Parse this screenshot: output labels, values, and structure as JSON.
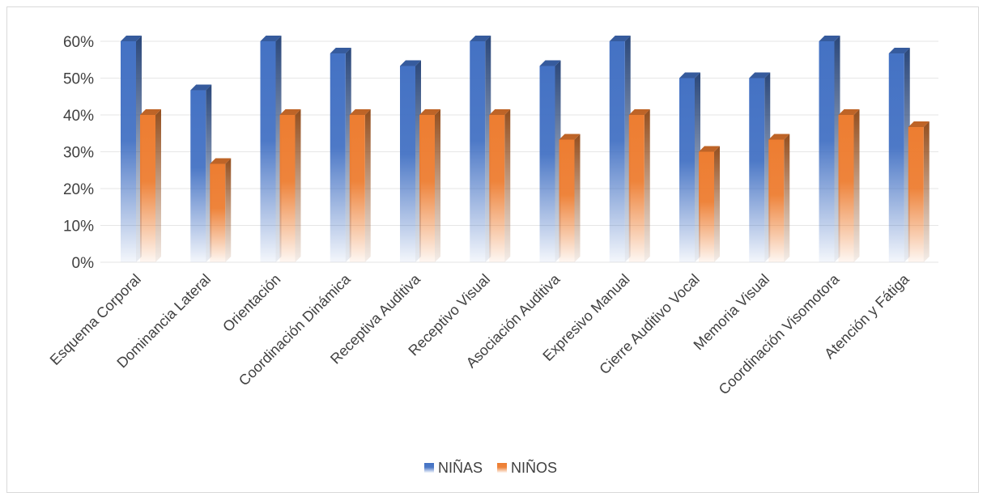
{
  "chart_data": {
    "type": "bar",
    "categories": [
      "Esquema Corporal",
      "Dominancia Lateral",
      "Orientación",
      "Coordinación Dinámica",
      "Receptiva Auditiva",
      "Receptivo Visual",
      "Asociación Auditiva",
      "Expresivo Manual",
      "Cierre Auditivo Vocal",
      "Memoria Visual",
      "Coordinación Visomotora",
      "Atención y Fátiga"
    ],
    "series": [
      {
        "name": "NIÑAS",
        "color": "#4472C4",
        "values": [
          60,
          46.7,
          60,
          56.7,
          53.3,
          60,
          53.3,
          60,
          50,
          50,
          60,
          56.7
        ]
      },
      {
        "name": "NIÑOS",
        "color": "#ED7D31",
        "values": [
          40,
          26.7,
          40,
          40,
          40,
          40,
          33.3,
          40,
          30,
          33.3,
          40,
          36.7
        ]
      }
    ],
    "ylim": [
      0,
      60
    ],
    "yticks": [
      "0%",
      "10%",
      "20%",
      "30%",
      "40%",
      "50%",
      "60%"
    ],
    "grid": true,
    "legend": "bottom"
  }
}
